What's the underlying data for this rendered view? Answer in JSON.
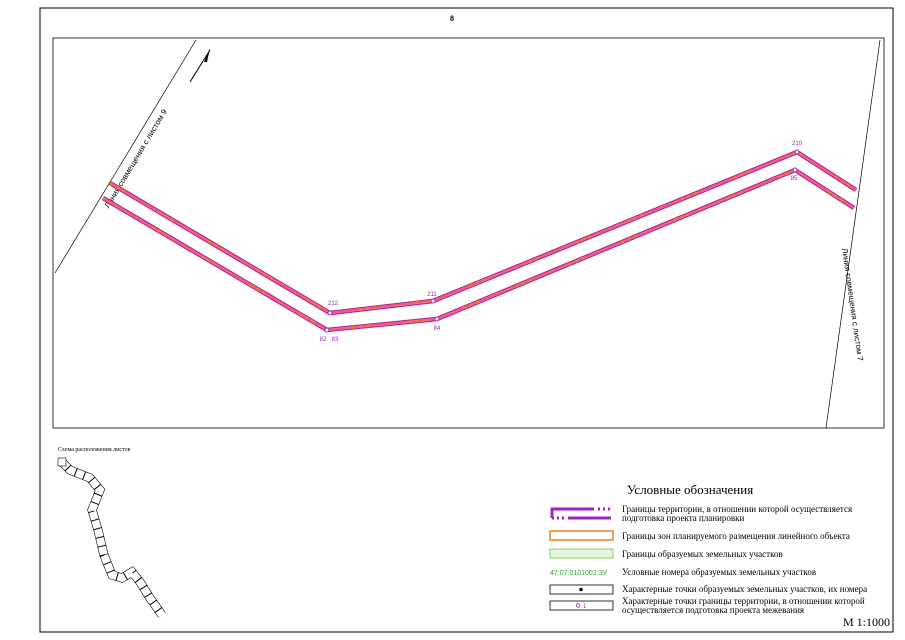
{
  "header": {
    "sheet_number": "8"
  },
  "map": {
    "match_lines": [
      "Линия совмещения с листом 9",
      "Линия совмещения с листом 7"
    ],
    "points": [
      "212",
      "211",
      "210",
      "82",
      "83",
      "84",
      "85"
    ]
  },
  "schema": {
    "title": "Схема расположения листов"
  },
  "legend": {
    "title": "Условные обозначения",
    "items": [
      {
        "lines": [
          "Границы территории, в отношении которой осуществляется",
          "подготовка проекта планировки"
        ]
      },
      {
        "lines": [
          "Границы зон планируемого размещения линейного объекта"
        ]
      },
      {
        "lines": [
          "Границы образуемых земельных участков"
        ]
      },
      {
        "lines": [
          "Условные номера образуемых земельных участков"
        ]
      },
      {
        "lines": [
          "Характерные точки образуемых земельных участков, их номера"
        ]
      },
      {
        "lines": [
          "Характерные точки границы территории, в отношении которой",
          "осуществляется подготовка проекта межевания"
        ]
      }
    ],
    "sample_parcel_number": "47:07:0101002:ЗУ",
    "sample_point_number": "1"
  },
  "scale": "М 1:1000"
}
